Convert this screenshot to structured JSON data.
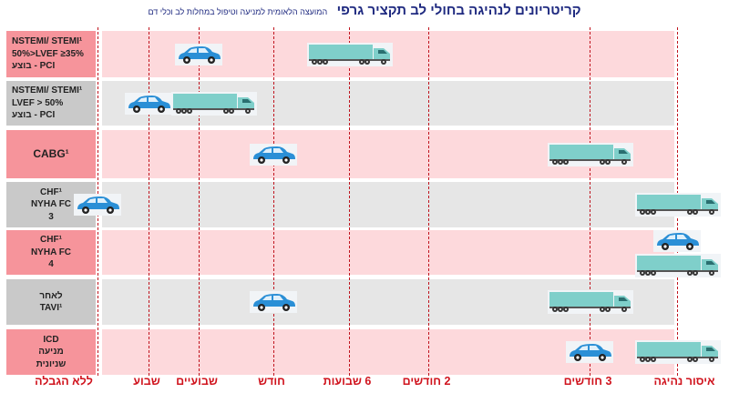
{
  "title": {
    "main": "קריטריונים לנהיגה בחולי לב  תקציר  גרפי",
    "sub": "המועצה הלאומית למניעה וטיפול במחלות לב וכלי דם"
  },
  "timeline": [
    "ללא הגבלה",
    "שבוע",
    "שבועיים",
    "חודש",
    "6 שבועות",
    "2 חודשים",
    "3 חודשים",
    "איסור נהיגה"
  ],
  "colors": {
    "pink_row": "#fdd9dc",
    "gray_row": "#e6e6e6",
    "pink_label": "#f6949b",
    "gray_label": "#c9c9c9",
    "line": "#c0141e",
    "car": "#2a8fd6",
    "truck": "#7fcfca"
  },
  "icons": {
    "car": "car-icon",
    "truck": "truck-icon"
  },
  "rows": [
    {
      "lines": [
        "NSTEMI/  STEMI¹",
        "50%>LVEF ≥35%",
        "PCI - בוצע"
      ],
      "color": "pink",
      "car": 2,
      "truck": 4
    },
    {
      "lines": [
        "NSTEMI/ STEMI¹",
        "LVEF > 50%",
        "PCI - בוצע"
      ],
      "color": "gray",
      "car": 1,
      "truck": 2.2
    },
    {
      "lines": [
        "CABG¹"
      ],
      "color": "pink",
      "car": 3,
      "truck": 6
    },
    {
      "lines": [
        "CHF¹",
        "NYHA FC",
        "3"
      ],
      "color": "gray",
      "car": 0,
      "truck": 7
    },
    {
      "lines": [
        "CHF¹",
        "NYHA FC",
        "4"
      ],
      "color": "pink",
      "car": 7,
      "truck": 7
    },
    {
      "lines": [
        "לאחר",
        "TAVI¹"
      ],
      "color": "gray",
      "car": 3,
      "truck": 6
    },
    {
      "lines": [
        "ICD",
        "מניעה",
        "שניונית"
      ],
      "color": "pink",
      "car": 6,
      "truck": 7
    }
  ]
}
